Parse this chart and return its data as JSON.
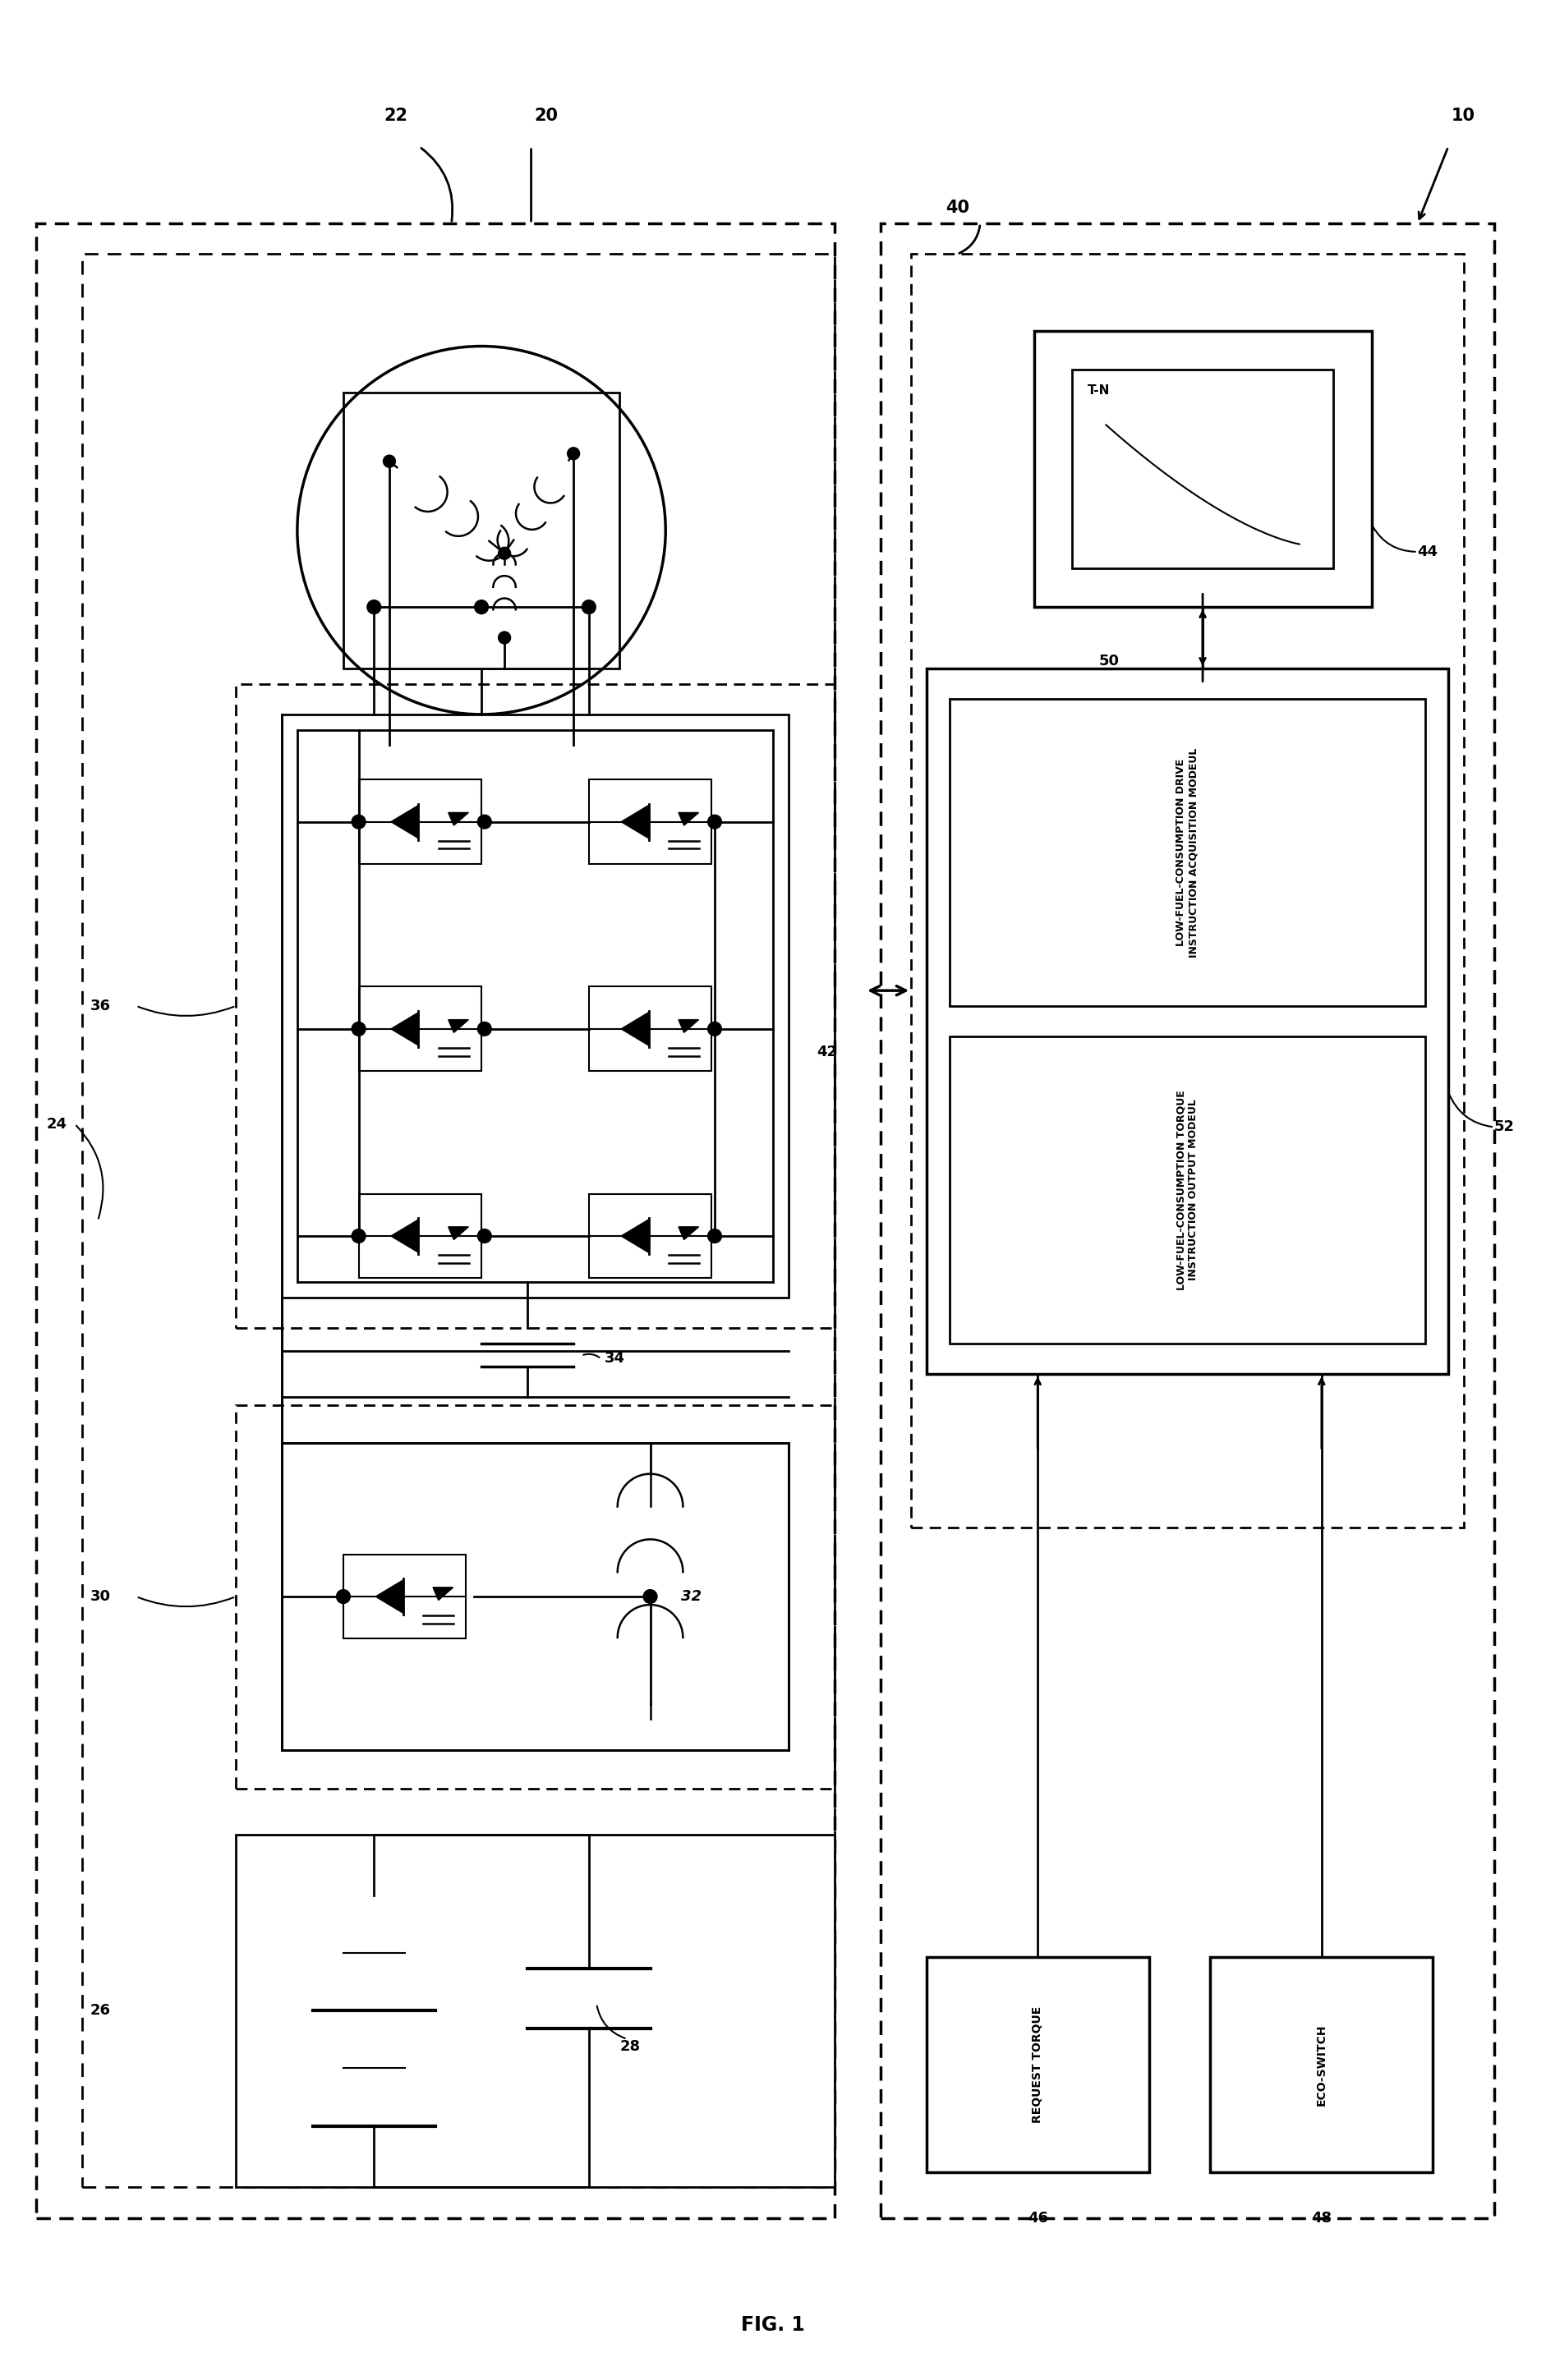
{
  "title": "FIG. 1",
  "bg_color": "#ffffff",
  "label_10": "10",
  "label_20": "20",
  "label_22": "22",
  "label_24": "24",
  "label_26": "26",
  "label_28": "28",
  "label_30": "30",
  "label_32": "32",
  "label_34": "34",
  "label_36": "36",
  "label_40": "40",
  "label_42": "42",
  "label_44": "44",
  "label_46": "46",
  "label_48": "48",
  "label_50": "50",
  "label_52": "52",
  "box1_line1": "LOW-FUEL-CONSUMPTION DRIVE",
  "box1_line2": "INSTRUCTION ACQUISITION MODEUL",
  "box2_line1": "LOW-FUEL-CONSUMPTION TORQUE",
  "box2_line2": "INSTRUCTION OUTPUT MODEUL",
  "box3_text": "REQUEST TORQUE",
  "box4_text": "ECO-SWITCH",
  "graph_label": "T-N"
}
